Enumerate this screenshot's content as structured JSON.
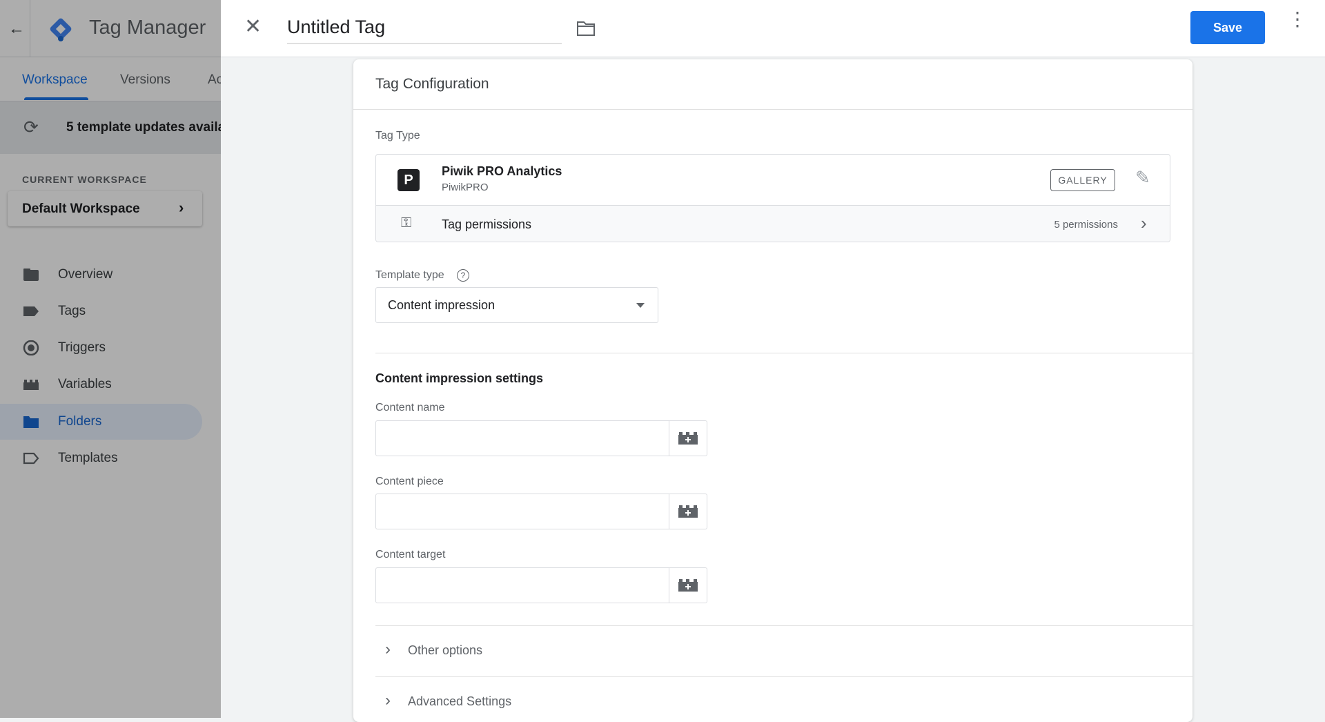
{
  "app": {
    "title": "Tag Manager",
    "brand_color": "#4285f4"
  },
  "tabs": [
    {
      "label": "Workspace",
      "active": true
    },
    {
      "label": "Versions"
    },
    {
      "label": "Ac"
    }
  ],
  "banner": {
    "text": "5 template updates availal",
    "icon": "update-icon"
  },
  "workspace": {
    "section_label": "CURRENT WORKSPACE",
    "name": "Default Workspace"
  },
  "nav": [
    {
      "label": "Overview",
      "icon": "overview-icon"
    },
    {
      "label": "Tags",
      "icon": "tag-icon"
    },
    {
      "label": "Triggers",
      "icon": "trigger-icon"
    },
    {
      "label": "Variables",
      "icon": "variables-icon"
    },
    {
      "label": "Folders",
      "icon": "folder-icon",
      "active": true
    },
    {
      "label": "Templates",
      "icon": "template-icon"
    }
  ],
  "editor": {
    "title": "Untitled Tag",
    "save_label": "Save",
    "accent": "#1a73e8"
  },
  "config": {
    "heading": "Tag Configuration",
    "tag_type_label": "Tag Type",
    "tag_type": {
      "name": "Piwik PRO Analytics",
      "vendor": "PiwikPRO",
      "logo_letter": "P",
      "badge": "GALLERY"
    },
    "permissions": {
      "label": "Tag permissions",
      "count": "5 permissions"
    },
    "template_type_label": "Template type",
    "template_type_value": "Content impression",
    "settings_heading": "Content impression settings",
    "fields": [
      {
        "label": "Content name",
        "value": ""
      },
      {
        "label": "Content piece",
        "value": ""
      },
      {
        "label": "Content target",
        "value": ""
      }
    ],
    "other_options": "Other options",
    "advanced_settings": "Advanced Settings"
  }
}
